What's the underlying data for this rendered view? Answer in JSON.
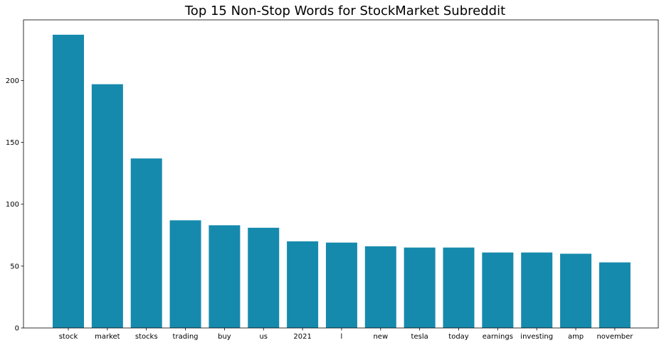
{
  "chart_data": {
    "type": "bar",
    "title": "Top 15 Non-Stop Words for StockMarket Subreddit",
    "xlabel": "",
    "ylabel": "",
    "categories": [
      "stock",
      "market",
      "stocks",
      "trading",
      "buy",
      "us",
      "2021",
      "l",
      "new",
      "tesla",
      "today",
      "earnings",
      "investing",
      "amp",
      "november"
    ],
    "values": [
      237,
      197,
      137,
      87,
      83,
      81,
      70,
      69,
      66,
      65,
      65,
      61,
      61,
      60,
      53
    ],
    "y_ticks": [
      0,
      50,
      100,
      150,
      200
    ],
    "ylim": [
      0,
      249
    ],
    "grid": false,
    "legend": "none",
    "bar_color": "#168aad"
  }
}
